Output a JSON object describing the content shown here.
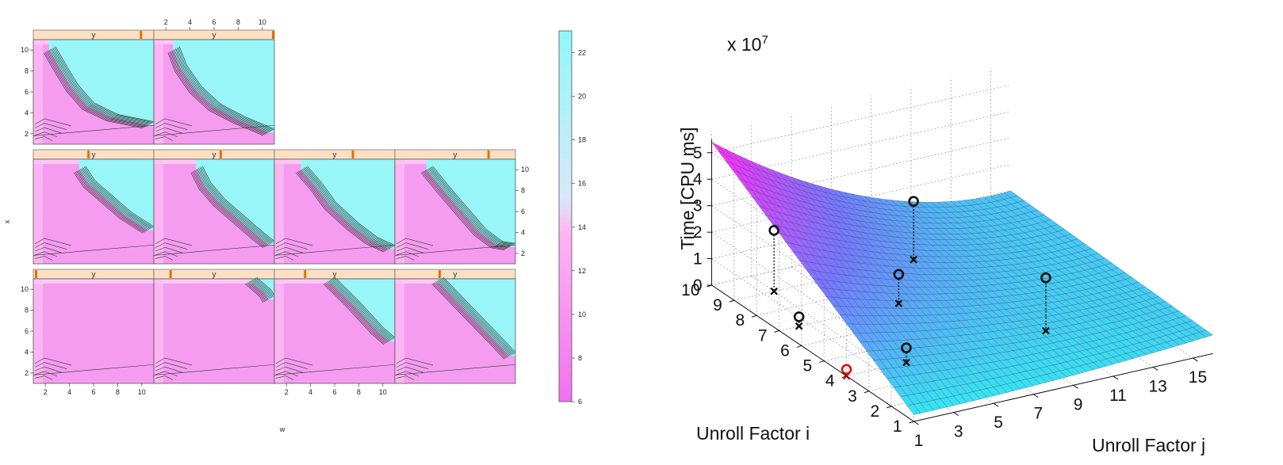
{
  "chart_data": [
    {
      "type": "heatmap",
      "title": "",
      "xlabel": "w",
      "ylabel": "x",
      "xticks": [
        "2",
        "4",
        "6",
        "8",
        "10"
      ],
      "yticks": [
        "2",
        "4",
        "6",
        "8",
        "10"
      ],
      "xlim": [
        1,
        11
      ],
      "ylim": [
        1,
        11
      ],
      "strip_label": "y",
      "colorbar": {
        "ticks": [
          "6",
          "8",
          "10",
          "12",
          "14",
          "16",
          "18",
          "20",
          "22"
        ],
        "range": [
          6,
          23
        ],
        "low_color": "#f070f0",
        "mid_color": "#ffb0f0",
        "high_color": "#90f8f8"
      },
      "panels": [
        {
          "row": 0,
          "col": 0,
          "strip_fraction": 0.9,
          "boundary": [
            [
              2.3,
              10
            ],
            [
              3.2,
              8.2
            ],
            [
              4.2,
              6.3
            ],
            [
              5.5,
              4.6
            ],
            [
              7.5,
              3.5
            ],
            [
              10.5,
              2.8
            ]
          ]
        },
        {
          "row": 0,
          "col": 1,
          "strip_fraction": 1.0,
          "boundary": [
            [
              2.6,
              10
            ],
            [
              3.2,
              8.2
            ],
            [
              4.4,
              6.2
            ],
            [
              6,
              4.5
            ],
            [
              8,
              3.3
            ],
            [
              10.5,
              2.1
            ]
          ]
        },
        {
          "row": 1,
          "col": 0,
          "strip_fraction": 0.45,
          "boundary": [
            [
              4.8,
              10
            ],
            [
              5.6,
              8.6
            ],
            [
              7,
              7.2
            ],
            [
              8.6,
              5.6
            ],
            [
              10.5,
              4.2
            ]
          ]
        },
        {
          "row": 1,
          "col": 1,
          "strip_fraction": 0.55,
          "boundary": [
            [
              4.5,
              10
            ],
            [
              5.2,
              8.4
            ],
            [
              6.4,
              6.8
            ],
            [
              8,
              5.2
            ],
            [
              9.6,
              3.6
            ],
            [
              10.5,
              2.8
            ]
          ]
        },
        {
          "row": 1,
          "col": 2,
          "strip_fraction": 0.65,
          "boundary": [
            [
              3.2,
              10
            ],
            [
              4.4,
              8.4
            ],
            [
              5.6,
              6.5
            ],
            [
              7.5,
              4.5
            ],
            [
              9,
              3.2
            ],
            [
              10.5,
              2.4
            ]
          ]
        },
        {
          "row": 1,
          "col": 3,
          "strip_fraction": 0.78,
          "boundary": [
            [
              3.6,
              10
            ],
            [
              5,
              8
            ],
            [
              6.5,
              6
            ],
            [
              8,
              4
            ],
            [
              9.4,
              2.8
            ],
            [
              10.5,
              2.6
            ]
          ]
        },
        {
          "row": 2,
          "col": 0,
          "strip_fraction": 0.0,
          "boundary": []
        },
        {
          "row": 2,
          "col": 1,
          "strip_fraction": 0.12,
          "boundary": [
            [
              9,
              10.8
            ],
            [
              10.2,
              9.6
            ],
            [
              10.5,
              9
            ]
          ]
        },
        {
          "row": 2,
          "col": 2,
          "strip_fraction": 0.24,
          "boundary": [
            [
              5.5,
              10.8
            ],
            [
              7.5,
              8.5
            ],
            [
              9.5,
              6
            ],
            [
              10.5,
              5
            ]
          ]
        },
        {
          "row": 2,
          "col": 3,
          "strip_fraction": 0.36,
          "boundary": [
            [
              4.5,
              10.8
            ],
            [
              6,
              9
            ],
            [
              7.5,
              7.2
            ],
            [
              9.2,
              5.2
            ],
            [
              10.5,
              3.6
            ]
          ]
        }
      ]
    },
    {
      "type": "surface",
      "title": "",
      "x_name": "Unroll Factor j",
      "y_name": "Unroll Factor i",
      "z_name": "Time [CPU ms]",
      "z_multiplier": "x 10",
      "z_exponent": "7",
      "xticks": [
        "1",
        "3",
        "5",
        "7",
        "9",
        "11",
        "13",
        "15"
      ],
      "yticks": [
        "1",
        "2",
        "3",
        "4",
        "5",
        "6",
        "7",
        "8",
        "9",
        "10"
      ],
      "zticks": [
        "0",
        "1",
        "2",
        "3",
        "4",
        "5"
      ],
      "xlim": [
        1,
        16
      ],
      "ylim": [
        1,
        10
      ],
      "zlim": [
        0,
        5.5
      ],
      "colormap": [
        "#30f0f0",
        "#ff30ff"
      ],
      "samples": [
        {
          "i": 4,
          "j": 1,
          "z": 0.25,
          "highlight": true
        },
        {
          "i": 7,
          "j": 2,
          "z": 0.35,
          "highlight": false
        },
        {
          "i": 9,
          "j": 3,
          "z": 2.3,
          "highlight": false
        },
        {
          "i": 4,
          "j": 4,
          "z": 0.55,
          "highlight": false
        },
        {
          "i": 7,
          "j": 7,
          "z": 1.1,
          "highlight": false
        },
        {
          "i": 9,
          "j": 10,
          "z": 2.2,
          "highlight": false
        },
        {
          "i": 4,
          "j": 11,
          "z": 2.0,
          "highlight": false
        }
      ]
    }
  ]
}
